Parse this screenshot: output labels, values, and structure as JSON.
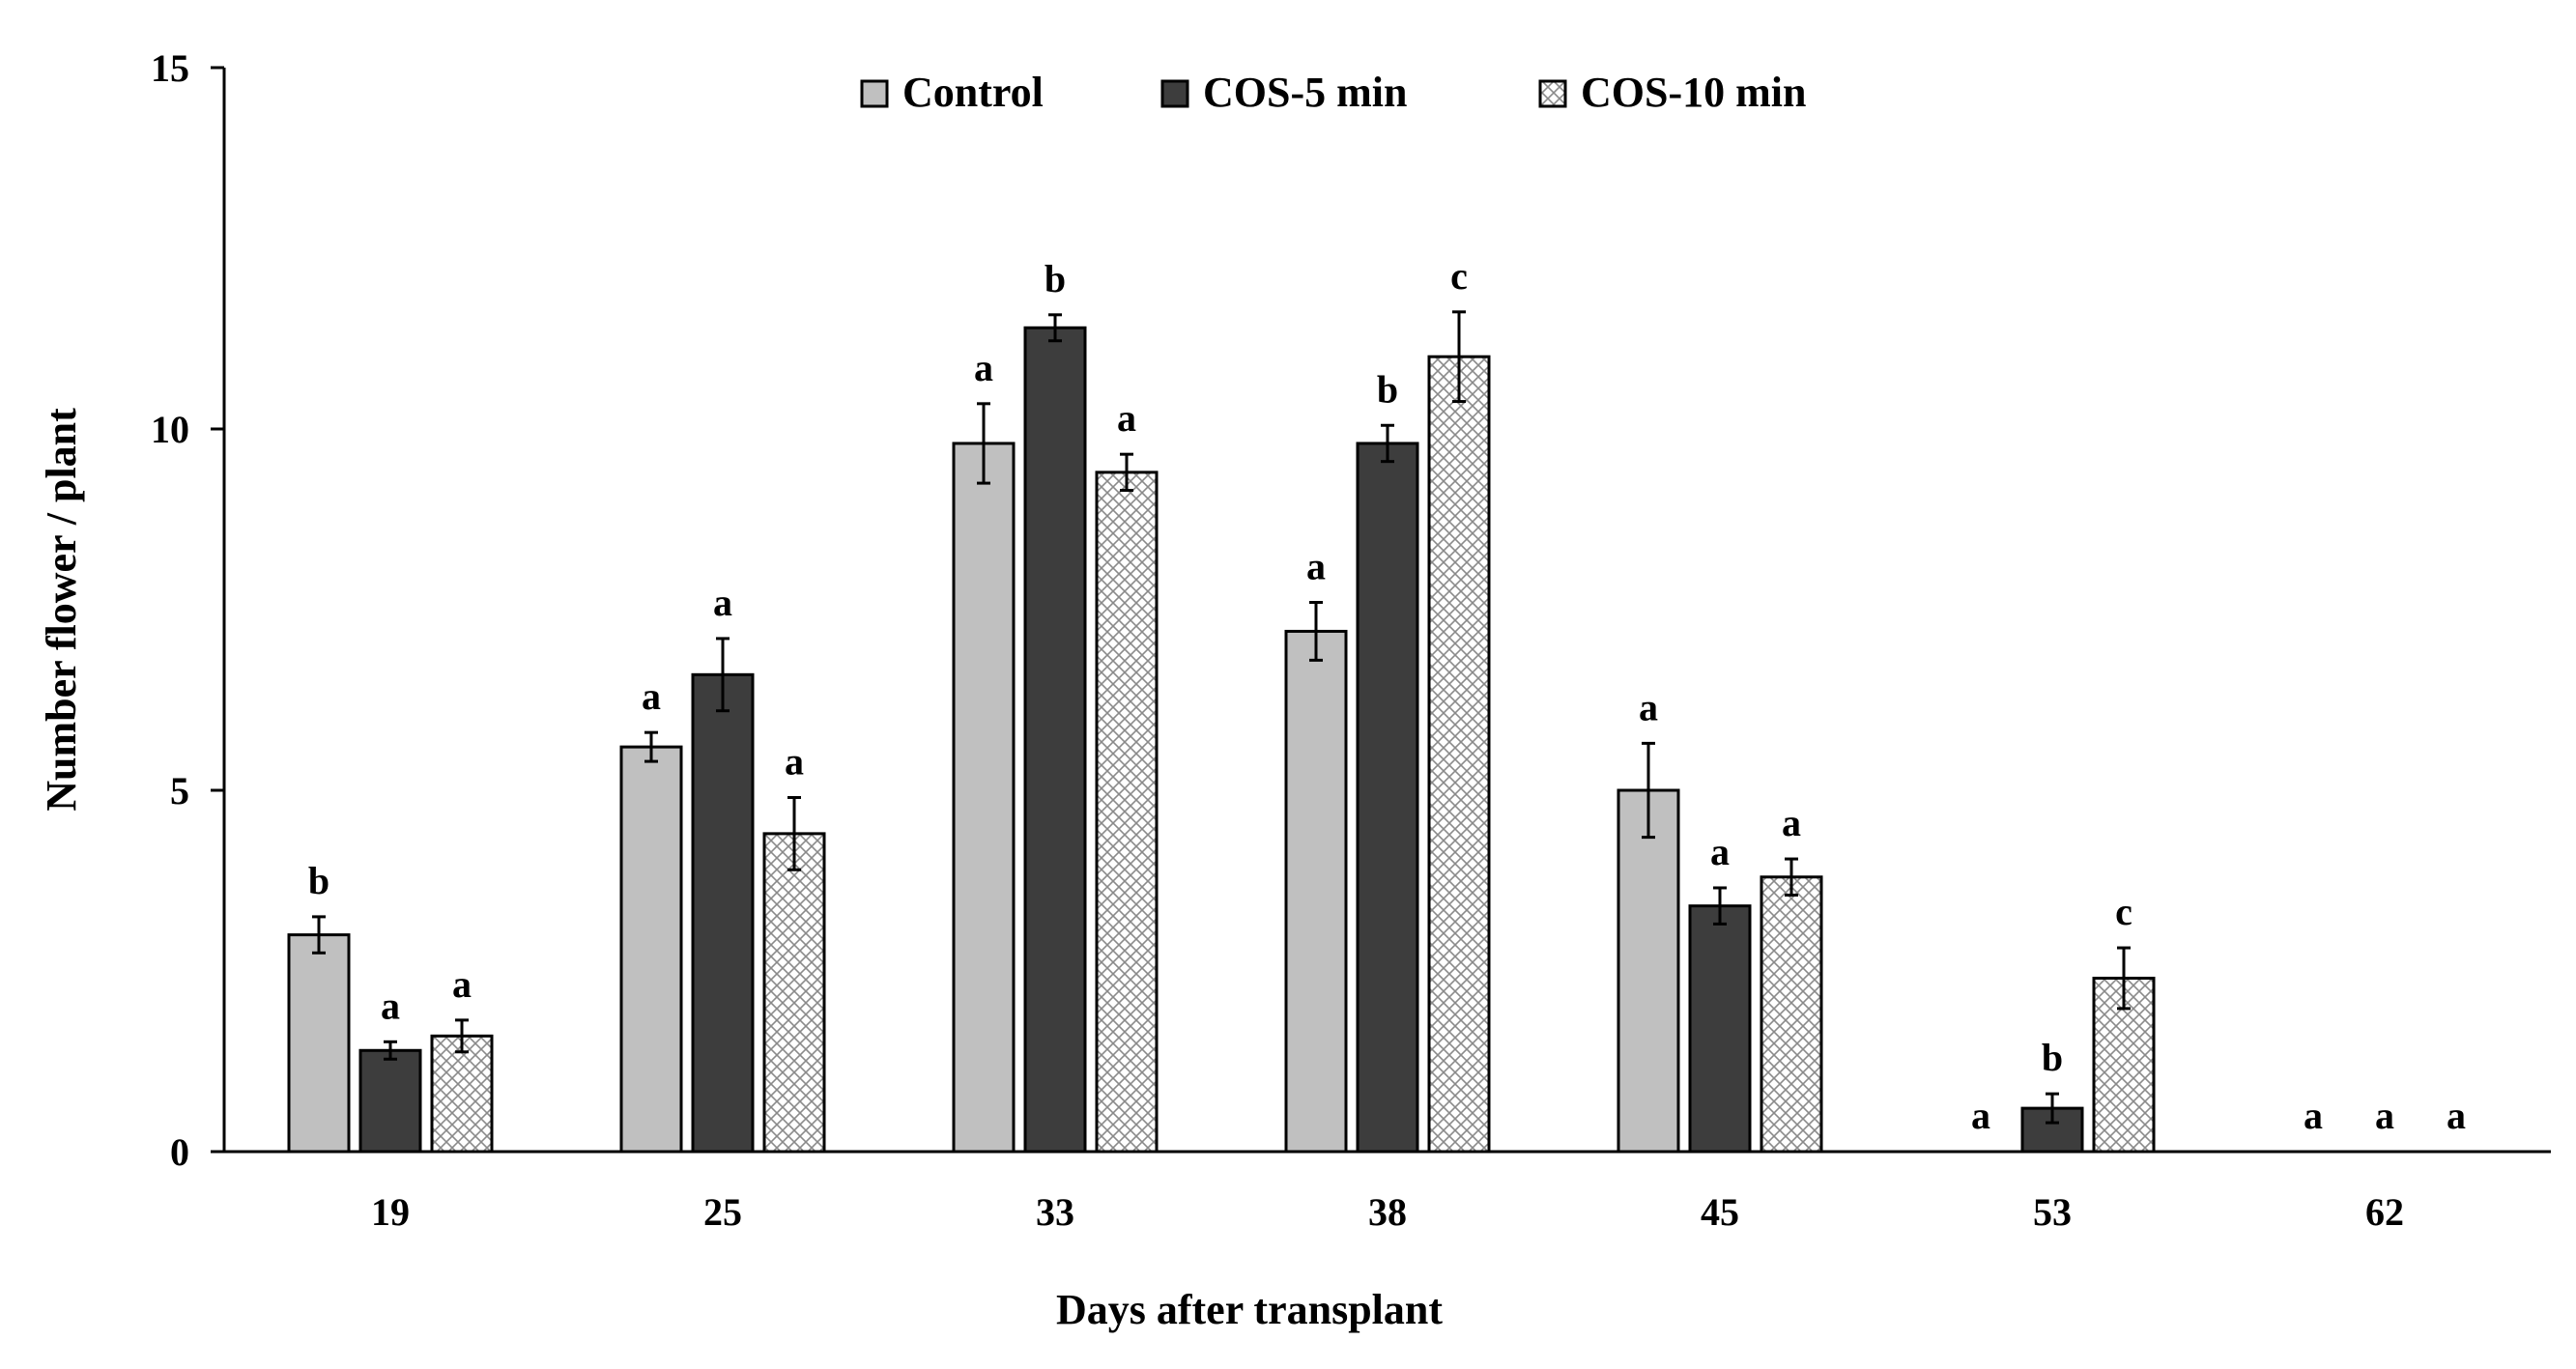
{
  "chart_data": {
    "type": "bar",
    "title": "",
    "xlabel": "Days after transplant",
    "ylabel": "Number  flower / plant",
    "ylim": [
      0,
      15
    ],
    "yticks": [
      0,
      5,
      10,
      15
    ],
    "categories": [
      "19",
      "25",
      "33",
      "38",
      "45",
      "53",
      "62"
    ],
    "legend_position": "top-center",
    "series": [
      {
        "name": "Control",
        "fill": "#c0c0c0",
        "pattern": "solid",
        "values": [
          3.0,
          5.6,
          9.8,
          7.2,
          5.0,
          0,
          0
        ],
        "errors": [
          0.25,
          0.2,
          0.55,
          0.4,
          0.65,
          0,
          0
        ],
        "letters": [
          "b",
          "a",
          "a",
          "a",
          "a",
          "a",
          "a"
        ]
      },
      {
        "name": "COS-5 min",
        "fill": "#3d3d3d",
        "pattern": "solid",
        "values": [
          1.4,
          6.6,
          11.4,
          9.8,
          3.4,
          0.6,
          0
        ],
        "errors": [
          0.12,
          0.5,
          0.18,
          0.25,
          0.25,
          0.2,
          0
        ],
        "letters": [
          "a",
          "a",
          "b",
          "b",
          "a",
          "b",
          "a"
        ]
      },
      {
        "name": "COS-10 min",
        "fill": "#ffffff",
        "pattern": "crosshatch",
        "values": [
          1.6,
          4.4,
          9.4,
          11.0,
          3.8,
          2.4,
          0
        ],
        "errors": [
          0.22,
          0.5,
          0.25,
          0.62,
          0.25,
          0.42,
          0
        ],
        "letters": [
          "a",
          "a",
          "a",
          "c",
          "a",
          "c",
          "a"
        ]
      }
    ]
  }
}
